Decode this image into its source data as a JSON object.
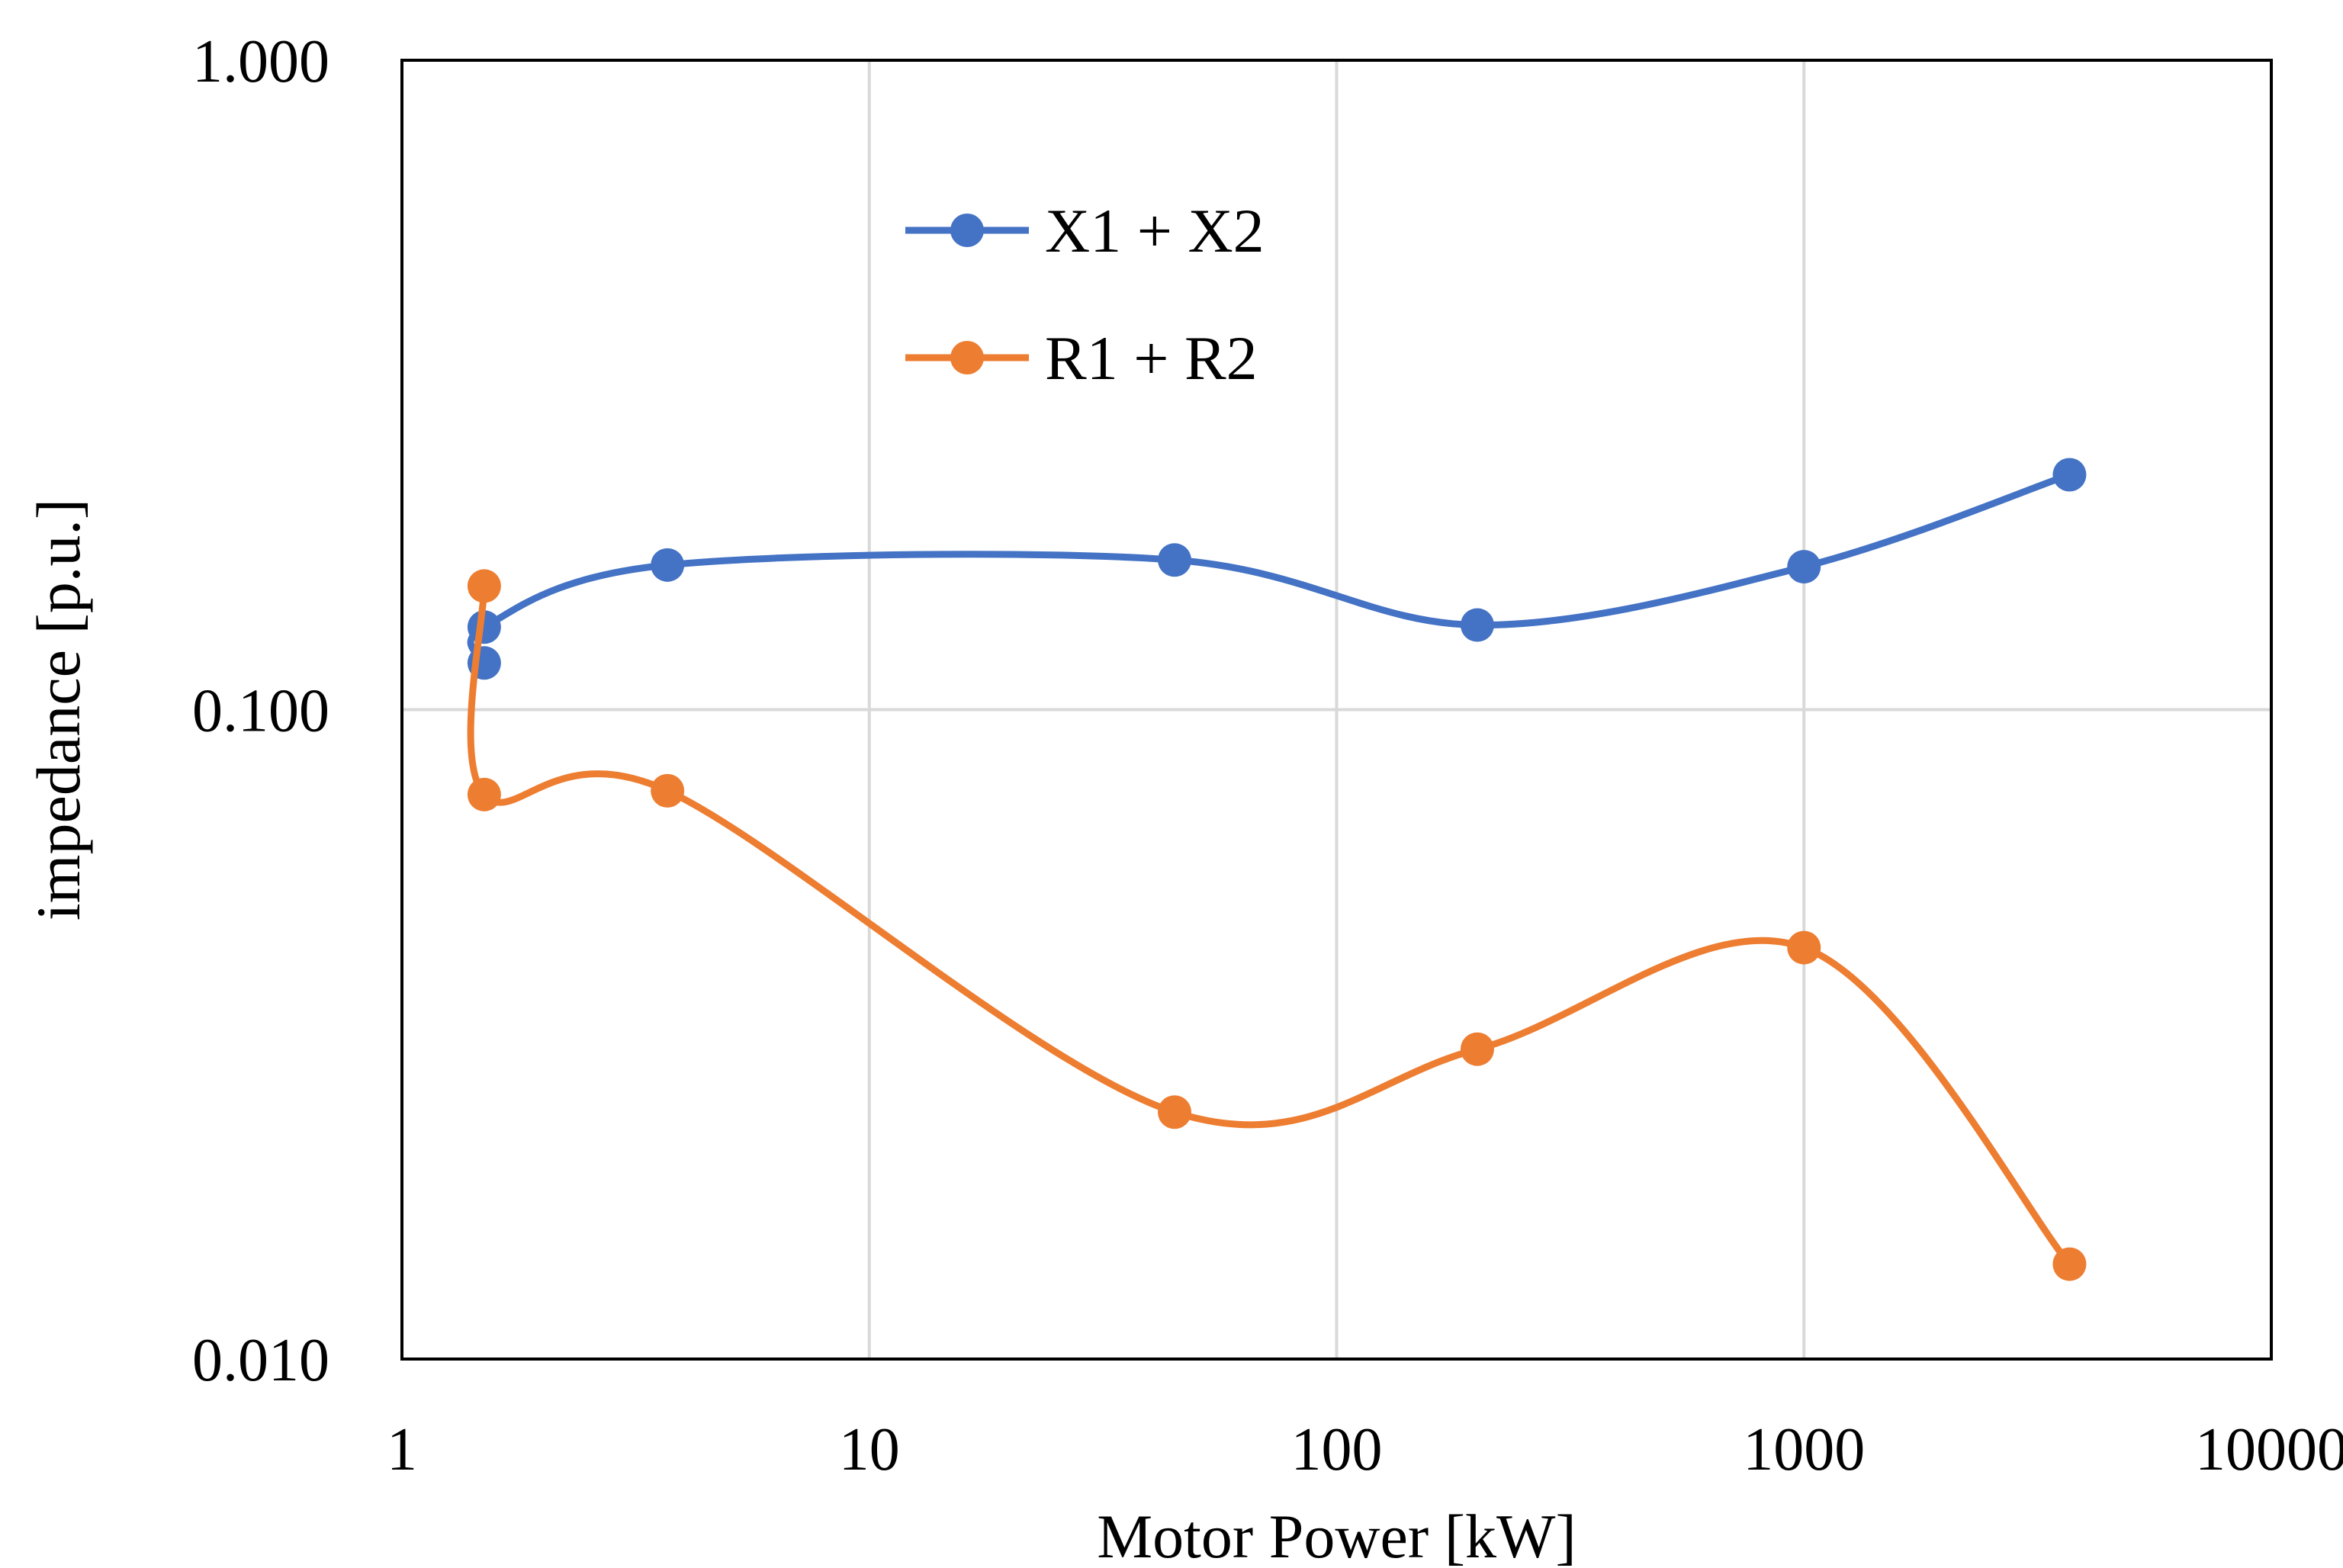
{
  "chart_data": {
    "type": "line",
    "title": "",
    "xlabel": "Motor Power [kW]",
    "ylabel": "impedance [p.u.]",
    "x_scale": "log",
    "y_scale": "log",
    "xlim": [
      1,
      10000
    ],
    "ylim": [
      0.01,
      1.0
    ],
    "grid": true,
    "x_ticks": [
      1,
      10,
      100,
      1000,
      10000
    ],
    "x_tick_labels": [
      "1",
      "10",
      "100",
      "1000",
      "10000"
    ],
    "y_ticks": [
      0.01,
      0.1,
      1.0
    ],
    "y_tick_labels": [
      "0.010",
      "0.100",
      "1.000"
    ],
    "legend_position": "top-center",
    "series": [
      {
        "name": "X1 + X2",
        "color": "#4472C4",
        "smooth": true,
        "x": [
          1.5,
          1.5,
          3.7,
          45,
          200,
          1000,
          3700
        ],
        "y": [
          0.118,
          0.134,
          0.167,
          0.17,
          0.135,
          0.166,
          0.23
        ]
      },
      {
        "name": "R1 + R2",
        "color": "#ED7D31",
        "smooth": true,
        "x": [
          1.5,
          1.5,
          3.7,
          45,
          200,
          1000,
          3700
        ],
        "y": [
          0.155,
          0.074,
          0.075,
          0.024,
          0.03,
          0.043,
          0.014
        ]
      }
    ]
  }
}
